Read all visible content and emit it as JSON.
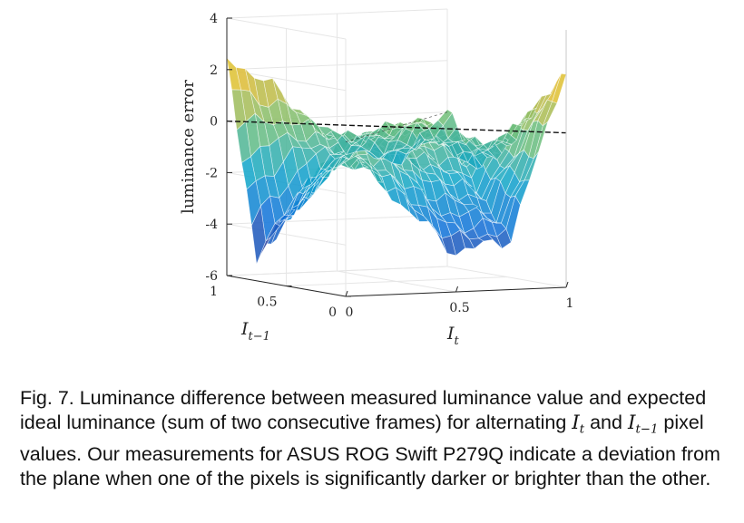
{
  "chart_data": {
    "type": "surface",
    "xlabel": "I_t",
    "ylabel": "I_{t-1}",
    "zlabel": "luminance error",
    "xlim": [
      0,
      1
    ],
    "ylim": [
      0,
      1
    ],
    "zlim": [
      -6,
      4
    ],
    "x_ticks": [
      "0",
      "0.5",
      "1"
    ],
    "y_ticks": [
      "0",
      "0.5",
      "1"
    ],
    "z_ticks": [
      "4",
      "2",
      "0",
      "-2",
      "-4",
      "-6"
    ],
    "grid": true,
    "colormap": "parula",
    "reference_plane_z": 0,
    "surface_samples": {
      "x": [
        0,
        0.25,
        0.5,
        0.75,
        1
      ],
      "y": [
        0,
        0.25,
        0.5,
        0.75,
        1
      ],
      "z": [
        [
          0,
          -2.5,
          -4.5,
          -4,
          2.5
        ],
        [
          -1.5,
          0,
          -1.5,
          -2.5,
          1
        ],
        [
          -3.5,
          -1,
          0,
          -0.5,
          -1
        ],
        [
          -5,
          -2,
          -0.5,
          0,
          -2
        ],
        [
          2.5,
          1,
          -1,
          -2,
          0
        ]
      ]
    }
  },
  "caption": {
    "fig_label": "Fig. 7.",
    "part1": " Luminance difference between measured luminance value and expected ideal luminance (sum of two consecutive frames) for alternating ",
    "var_a": "I",
    "var_a_sub": "t",
    "mid": " and ",
    "var_b": "I",
    "var_b_sub": "t−1",
    "part2": " pixel values. Our measurements for ASUS ROG Swift P279Q indicate a deviation from the plane when one of the pixels is significantly darker or brighter than the other."
  }
}
